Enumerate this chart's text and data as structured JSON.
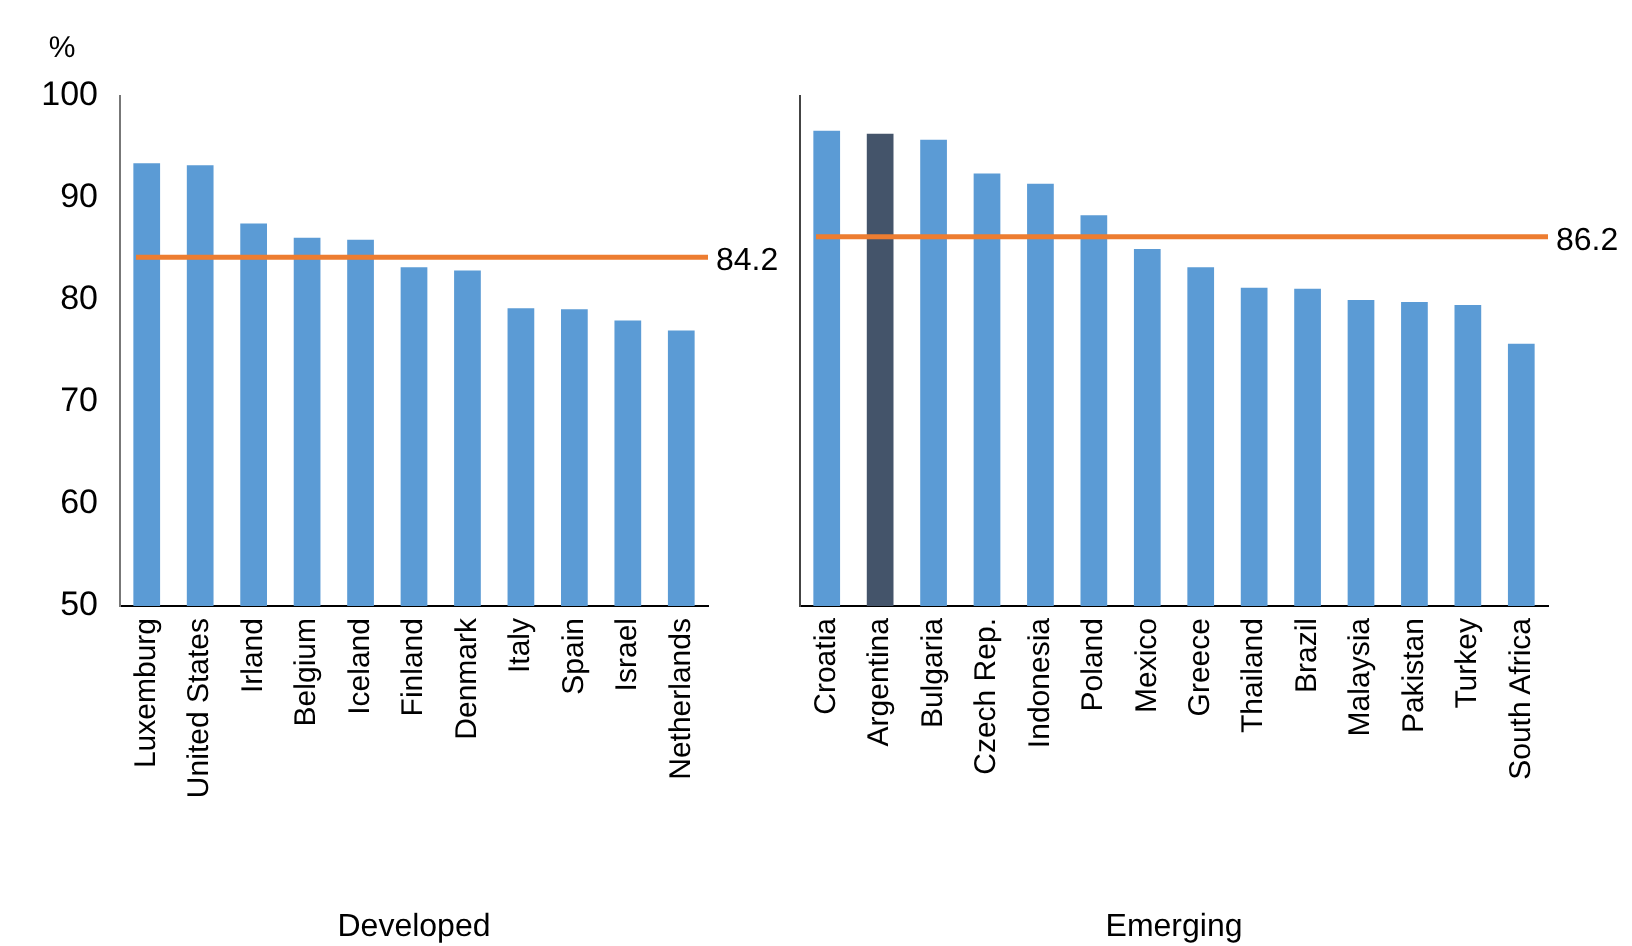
{
  "chart_data": [
    {
      "type": "bar",
      "ylabel": "%",
      "xlabel": "Developed",
      "categories": [
        "Luxemburg",
        "United States",
        "Irland",
        "Belgium",
        "Iceland",
        "Finland",
        "Denmark",
        "Italy",
        "Spain",
        "Israel",
        "Netherlands"
      ],
      "values": [
        93.4,
        93.2,
        87.5,
        86.1,
        85.9,
        83.2,
        82.9,
        79.2,
        79.1,
        78.0,
        77.0
      ],
      "colors": [
        "#5b9bd5",
        "#5b9bd5",
        "#5b9bd5",
        "#5b9bd5",
        "#5b9bd5",
        "#5b9bd5",
        "#5b9bd5",
        "#5b9bd5",
        "#5b9bd5",
        "#5b9bd5",
        "#5b9bd5"
      ],
      "ylim": [
        50,
        100
      ],
      "yticks": [
        50,
        60,
        70,
        80,
        90,
        100
      ],
      "ref_lines": [
        {
          "axis": "y",
          "value": 84.2,
          "label": "84.2",
          "color": "#ed7d31"
        }
      ]
    },
    {
      "type": "bar",
      "xlabel": "Emerging",
      "categories": [
        "Croatia",
        "Argentina",
        "Bulgaria",
        "Czech Rep.",
        "Indonesia",
        "Poland",
        "Mexico",
        "Greece",
        "Thailand",
        "Brazil",
        "Malaysia",
        "Pakistan",
        "Turkey",
        "South Africa"
      ],
      "values": [
        96.6,
        96.3,
        95.7,
        92.4,
        91.4,
        88.3,
        85.0,
        83.2,
        81.2,
        81.1,
        80.0,
        79.8,
        79.5,
        75.7
      ],
      "colors": [
        "#5b9bd5",
        "#44546a",
        "#5b9bd5",
        "#5b9bd5",
        "#5b9bd5",
        "#5b9bd5",
        "#5b9bd5",
        "#5b9bd5",
        "#5b9bd5",
        "#5b9bd5",
        "#5b9bd5",
        "#5b9bd5",
        "#5b9bd5",
        "#5b9bd5"
      ],
      "ylim": [
        50,
        100
      ],
      "yticks": [
        50,
        60,
        70,
        80,
        90,
        100
      ],
      "tick_labels": "x",
      "ref_lines": [
        {
          "axis": "y",
          "value": 86.2,
          "label": "86.2",
          "color": "#ed7d31"
        }
      ]
    }
  ]
}
